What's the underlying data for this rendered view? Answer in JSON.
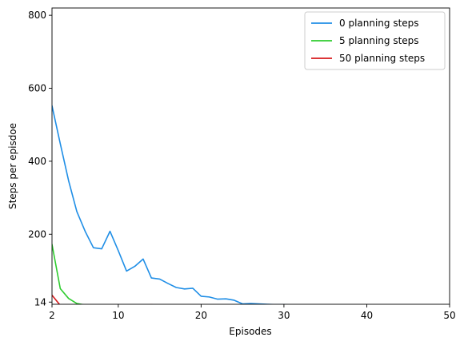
{
  "chart_data": {
    "type": "line",
    "title": "",
    "xlabel": "Episodes",
    "ylabel": "Steps per episdoe",
    "xlim": [
      2,
      50
    ],
    "ylim": [
      8,
      820
    ],
    "xticks": [
      2,
      10,
      20,
      30,
      40,
      50
    ],
    "yticks": [
      14,
      200,
      400,
      600,
      800
    ],
    "grid": false,
    "legend_position": "top-right",
    "series": [
      {
        "name": "0 planning steps",
        "color": "#1f8ee6",
        "x": [
          2,
          3,
          4,
          5,
          6,
          7,
          8,
          9,
          10,
          11,
          12,
          13,
          14,
          15,
          16,
          17,
          18,
          19,
          20,
          21,
          22,
          23,
          24,
          25,
          26,
          27,
          28,
          29,
          30,
          31,
          32,
          33,
          34,
          35,
          36,
          37,
          38,
          39,
          40,
          41,
          42,
          43,
          44,
          45,
          46,
          47,
          48,
          49,
          50
        ],
        "y": [
          552,
          448,
          347,
          262,
          208,
          163,
          160,
          208,
          155,
          99,
          112,
          132,
          80,
          77,
          65,
          54,
          50,
          52,
          30,
          28,
          22,
          23,
          19,
          9,
          10,
          9,
          8,
          7,
          7,
          6,
          6,
          5,
          5,
          6,
          5,
          6,
          5,
          5,
          5,
          5,
          5,
          5,
          5,
          5,
          5,
          5,
          5,
          5,
          5
        ]
      },
      {
        "name": "5 planning steps",
        "color": "#2ecc2e",
        "x": [
          2,
          3,
          4,
          5,
          6,
          7,
          8,
          9,
          10,
          11,
          12,
          13,
          14,
          15,
          16,
          17,
          18,
          19,
          20,
          21,
          22,
          23,
          24,
          25,
          26,
          27,
          28,
          29,
          30,
          31,
          32,
          33,
          34,
          35,
          36,
          37,
          38,
          39,
          40,
          41,
          42,
          43,
          44,
          45,
          46,
          47,
          48,
          49,
          50
        ],
        "y": [
          172,
          51,
          24,
          10,
          6,
          5,
          5,
          5,
          5,
          5,
          5,
          5,
          5,
          5,
          5,
          5,
          5,
          5,
          5,
          5,
          5,
          5,
          5,
          5,
          5,
          5,
          5,
          5,
          5,
          5,
          5,
          5,
          5,
          5,
          5,
          5,
          5,
          5,
          5,
          5,
          5,
          5,
          5,
          5,
          5,
          5,
          5,
          5,
          5
        ]
      },
      {
        "name": "50 planning steps",
        "color": "#d7191c",
        "x": [
          2,
          3,
          4,
          5,
          6,
          7,
          8,
          9,
          10,
          11,
          12,
          13,
          14,
          15,
          16,
          17,
          18,
          19,
          20,
          21,
          22,
          23,
          24,
          25,
          26,
          27,
          28,
          29,
          30,
          31,
          32,
          33,
          34,
          35,
          36,
          37,
          38,
          39,
          40,
          41,
          42,
          43,
          44,
          45,
          46,
          47,
          48,
          49,
          50
        ],
        "y": [
          33,
          5,
          5,
          4,
          5,
          5,
          6,
          4,
          4,
          4,
          4,
          5,
          7,
          4,
          4,
          4,
          3,
          3,
          3,
          4,
          4,
          3,
          5,
          5,
          4,
          4,
          4,
          3,
          4,
          5,
          4,
          2,
          2,
          4,
          4,
          3,
          4,
          2,
          3,
          4,
          4,
          3,
          5,
          3,
          4,
          3,
          5,
          4,
          3
        ]
      }
    ]
  }
}
